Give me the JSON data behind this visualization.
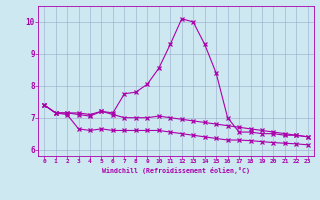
{
  "xlabel": "Windchill (Refroidissement éolien,°C)",
  "xlim": [
    -0.5,
    23.5
  ],
  "ylim": [
    5.8,
    10.5
  ],
  "yticks": [
    6,
    7,
    8,
    9,
    10
  ],
  "xticks": [
    0,
    1,
    2,
    3,
    4,
    5,
    6,
    7,
    8,
    9,
    10,
    11,
    12,
    13,
    14,
    15,
    16,
    17,
    18,
    19,
    20,
    21,
    22,
    23
  ],
  "bg_color": "#cde8f0",
  "line_color": "#aa00aa",
  "grid_color": "#99aacc",
  "curve_peak_x": [
    0,
    1,
    2,
    3,
    4,
    5,
    6,
    7,
    8,
    9,
    10,
    11,
    12,
    13,
    14,
    15,
    16,
    17,
    18,
    19,
    20,
    21,
    22,
    23
  ],
  "curve_peak_y": [
    7.4,
    7.15,
    7.15,
    7.15,
    7.1,
    7.2,
    7.15,
    7.75,
    7.8,
    8.05,
    8.55,
    9.3,
    10.1,
    10.0,
    9.3,
    8.4,
    7.0,
    6.55,
    6.55,
    6.5,
    6.5,
    6.45,
    6.45,
    6.4
  ],
  "curve_mid_x": [
    0,
    1,
    2,
    3,
    4,
    5,
    6,
    7,
    8,
    9,
    10,
    11,
    12,
    13,
    14,
    15,
    16,
    17,
    18,
    19,
    20,
    21,
    22,
    23
  ],
  "curve_mid_y": [
    7.4,
    7.15,
    7.15,
    7.1,
    7.05,
    7.2,
    7.1,
    7.0,
    7.0,
    7.0,
    7.05,
    7.0,
    6.95,
    6.9,
    6.85,
    6.8,
    6.75,
    6.7,
    6.65,
    6.6,
    6.55,
    6.5,
    6.45,
    6.4
  ],
  "curve_low_x": [
    0,
    1,
    2,
    3,
    4,
    5,
    6,
    7,
    8,
    9,
    10,
    11,
    12,
    13,
    14,
    15,
    16,
    17,
    18,
    19,
    20,
    21,
    22,
    23
  ],
  "curve_low_y": [
    7.4,
    7.15,
    7.1,
    6.65,
    6.6,
    6.65,
    6.6,
    6.6,
    6.6,
    6.6,
    6.6,
    6.55,
    6.5,
    6.45,
    6.4,
    6.35,
    6.3,
    6.3,
    6.28,
    6.25,
    6.22,
    6.2,
    6.18,
    6.15
  ]
}
